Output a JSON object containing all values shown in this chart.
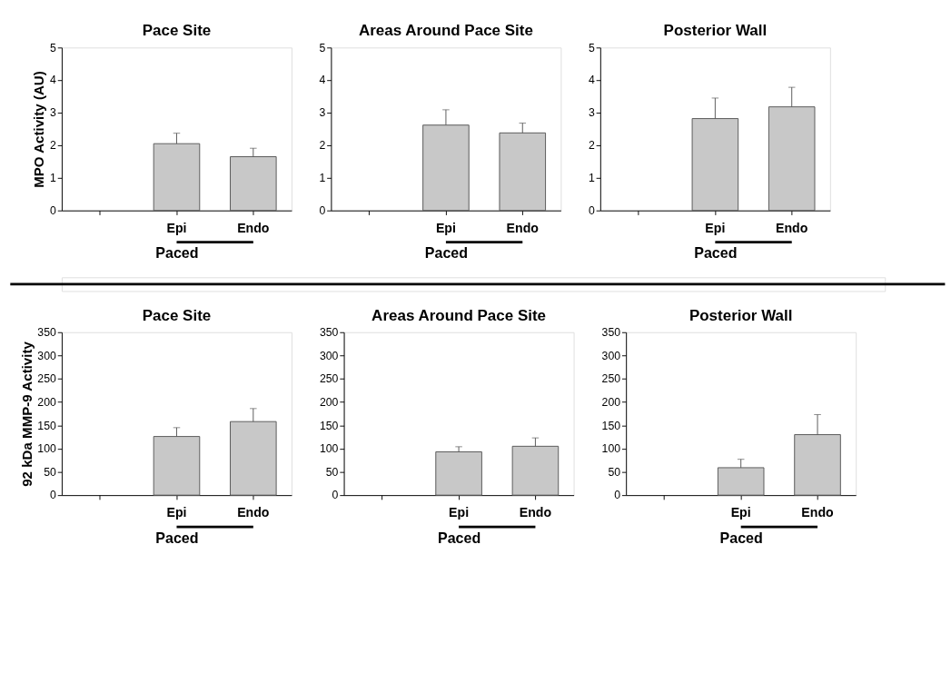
{
  "chart_data": [
    {
      "type": "bar",
      "title": "Pace Site",
      "ylabel": "MPO Activity (AU)",
      "xlabel": "Paced",
      "categories": [
        null,
        "Epi",
        "Endo"
      ],
      "values": [
        null,
        2.05,
        1.65
      ],
      "errors": [
        null,
        [
          2.05,
          2.37
        ],
        [
          1.65,
          1.91
        ]
      ],
      "color": "#c8c8c8",
      "ylim": [
        0,
        5
      ],
      "yticks": [
        0,
        1,
        2,
        3,
        4,
        5
      ],
      "grid": false
    },
    {
      "type": "bar",
      "title": "Areas Around Pace Site",
      "xlabel": "Paced",
      "categories": [
        null,
        "Epi",
        "Endo"
      ],
      "values": [
        null,
        2.62,
        2.38
      ],
      "errors": [
        null,
        [
          2.62,
          3.09
        ],
        [
          2.38,
          2.68
        ]
      ],
      "color": "#c8c8c8",
      "ylim": [
        0,
        5
      ],
      "yticks": [
        0,
        1,
        2,
        3,
        4,
        5
      ],
      "grid": false
    },
    {
      "type": "bar",
      "title": "Posterior Wall",
      "xlabel": "Paced",
      "categories": [
        null,
        "Epi",
        "Endo"
      ],
      "values": [
        null,
        2.82,
        3.18
      ],
      "errors": [
        null,
        [
          2.82,
          3.45
        ],
        [
          3.18,
          3.78
        ]
      ],
      "color": "#c8c8c8",
      "ylim": [
        0,
        5
      ],
      "yticks": [
        0,
        1,
        2,
        3,
        4,
        5
      ],
      "grid": false
    },
    {
      "type": "bar",
      "title": "Pace Site",
      "ylabel": "92 kDa MMP-9 Activity",
      "xlabel": "Paced",
      "categories": [
        null,
        "Epi",
        "Endo"
      ],
      "values": [
        null,
        126,
        158
      ],
      "errors": [
        null,
        [
          126,
          145
        ],
        [
          158,
          186
        ]
      ],
      "color": "#c8c8c8",
      "ylim": [
        0,
        350
      ],
      "yticks": [
        0,
        50,
        100,
        150,
        200,
        250,
        300,
        350
      ],
      "grid": false
    },
    {
      "type": "bar",
      "title": "Areas Around Pace Site",
      "xlabel": "Paced",
      "categories": [
        null,
        "Epi",
        "Endo"
      ],
      "values": [
        null,
        93,
        105
      ],
      "errors": [
        null,
        [
          93,
          104
        ],
        [
          105,
          123
        ]
      ],
      "color": "#c8c8c8",
      "ylim": [
        0,
        350
      ],
      "yticks": [
        0,
        50,
        100,
        150,
        200,
        250,
        300,
        350
      ],
      "grid": false
    },
    {
      "type": "bar",
      "title": "Posterior Wall",
      "xlabel": "Paced",
      "categories": [
        null,
        "Epi",
        "Endo"
      ],
      "values": [
        null,
        59,
        130
      ],
      "errors": [
        null,
        [
          59,
          77
        ],
        [
          130,
          173
        ]
      ],
      "color": "#c8c8c8",
      "ylim": [
        0,
        350
      ],
      "yticks": [
        0,
        50,
        100,
        150,
        200,
        250,
        300,
        350
      ],
      "grid": false
    }
  ]
}
